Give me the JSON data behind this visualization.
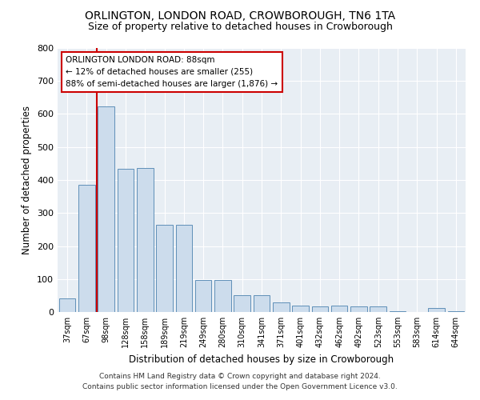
{
  "title1": "ORLINGTON, LONDON ROAD, CROWBOROUGH, TN6 1TA",
  "title2": "Size of property relative to detached houses in Crowborough",
  "xlabel": "Distribution of detached houses by size in Crowborough",
  "ylabel": "Number of detached properties",
  "footnote1": "Contains HM Land Registry data © Crown copyright and database right 2024.",
  "footnote2": "Contains public sector information licensed under the Open Government Licence v3.0.",
  "annotation_line1": "ORLINGTON LONDON ROAD: 88sqm",
  "annotation_line2": "← 12% of detached houses are smaller (255)",
  "annotation_line3": "88% of semi-detached houses are larger (1,876) →",
  "bar_color": "#ccdcec",
  "bar_edge_color": "#6090b8",
  "vline_color": "#cc0000",
  "vline_x": 1.5,
  "categories": [
    "37sqm",
    "67sqm",
    "98sqm",
    "128sqm",
    "158sqm",
    "189sqm",
    "219sqm",
    "249sqm",
    "280sqm",
    "310sqm",
    "341sqm",
    "371sqm",
    "401sqm",
    "432sqm",
    "462sqm",
    "492sqm",
    "523sqm",
    "553sqm",
    "583sqm",
    "614sqm",
    "644sqm"
  ],
  "values": [
    42,
    385,
    622,
    435,
    437,
    265,
    265,
    98,
    97,
    50,
    50,
    28,
    20,
    17,
    20,
    17,
    17,
    3,
    0,
    13,
    3
  ],
  "ylim": [
    0,
    800
  ],
  "yticks": [
    0,
    100,
    200,
    300,
    400,
    500,
    600,
    700,
    800
  ],
  "background_color": "#e8eef4",
  "grid_color": "#ffffff",
  "title1_fontsize": 10,
  "title2_fontsize": 9,
  "bar_width": 0.85
}
